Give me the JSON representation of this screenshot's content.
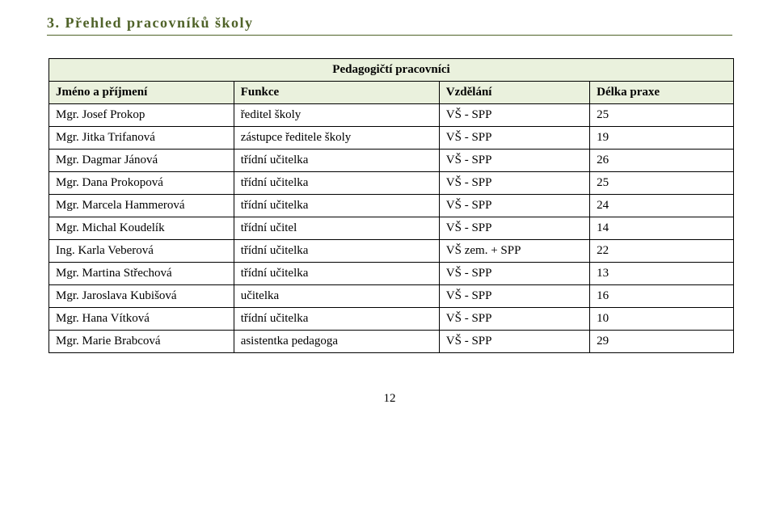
{
  "heading": "3.  Přehled  pracovníků  školy",
  "table": {
    "caption": "Pedagogičtí pracovníci",
    "background_header": "#eaf1dd",
    "border_color": "#000000",
    "heading_color": "#4f6228",
    "columns": [
      {
        "key": "name",
        "label": "Jméno a příjmení"
      },
      {
        "key": "role",
        "label": "Funkce"
      },
      {
        "key": "edu",
        "label": "Vzdělání"
      },
      {
        "key": "exp",
        "label": "Délka praxe"
      }
    ],
    "rows": [
      {
        "name": "Mgr. Josef Prokop",
        "role": "ředitel školy",
        "edu": "VŠ - SPP",
        "exp": "25"
      },
      {
        "name": "Mgr. Jitka Trifanová",
        "role": "zástupce ředitele školy",
        "edu": "VŠ - SPP",
        "exp": "19"
      },
      {
        "name": "Mgr. Dagmar Jánová",
        "role": "třídní učitelka",
        "edu": "VŠ - SPP",
        "exp": "26"
      },
      {
        "name": "Mgr. Dana Prokopová",
        "role": "třídní učitelka",
        "edu": "VŠ - SPP",
        "exp": "25"
      },
      {
        "name": "Mgr. Marcela Hammerová",
        "role": "třídní učitelka",
        "edu": "VŠ - SPP",
        "exp": "24"
      },
      {
        "name": "Mgr. Michal Koudelík",
        "role": "třídní učitel",
        "edu": "VŠ - SPP",
        "exp": "14"
      },
      {
        "name": "Ing. Karla Veberová",
        "role": "třídní učitelka",
        "edu": "VŠ zem. + SPP",
        "exp": "22"
      },
      {
        "name": "Mgr. Martina Střechová",
        "role": "třídní učitelka",
        "edu": "VŠ - SPP",
        "exp": "13"
      },
      {
        "name": "Mgr. Jaroslava Kubišová",
        "role": "učitelka",
        "edu": "VŠ - SPP",
        "exp": "16"
      },
      {
        "name": "Mgr. Hana Vítková",
        "role": "třídní učitelka",
        "edu": "VŠ - SPP",
        "exp": "10"
      },
      {
        "name": "Mgr. Marie Brabcová",
        "role": "asistentka pedagoga",
        "edu": "VŠ - SPP",
        "exp": "29"
      }
    ]
  },
  "pageNumber": "12"
}
